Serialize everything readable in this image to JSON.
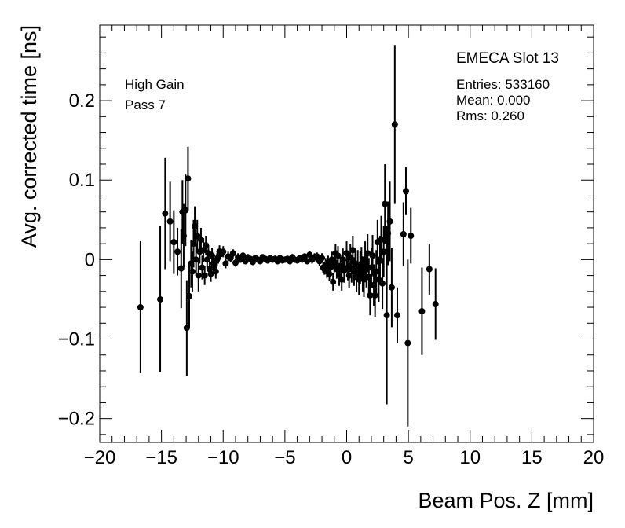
{
  "chart_data": {
    "type": "scatter",
    "xlabel": "Beam Pos. Z [mm]",
    "ylabel": "Avg. corrected time [ns]",
    "xlim": [
      -20,
      20
    ],
    "ylim": [
      -0.23,
      0.295
    ],
    "x_ticks": [
      -20,
      -15,
      -10,
      -5,
      0,
      5,
      10,
      15,
      20
    ],
    "x_tick_labels": [
      "−20",
      "−15",
      "−10",
      "−5",
      "0",
      "5",
      "10",
      "15",
      "20"
    ],
    "y_ticks": [
      -0.2,
      -0.1,
      0,
      0.1,
      0.2
    ],
    "y_tick_labels": [
      "−0.2",
      "−0.1",
      "0",
      "0.1",
      "0.2"
    ],
    "grid": false,
    "error_bars": true,
    "annotations": {
      "gain": "High Gain",
      "pass": "Pass 7",
      "slot": "EMECA Slot 13",
      "entries": "Entries: 533160",
      "mean": "Mean: 0.000",
      "rms": "Rms: 0.260"
    },
    "series": [
      {
        "points": [
          {
            "x": -16.7,
            "y": -0.06,
            "err": 0.083
          },
          {
            "x": -15.1,
            "y": -0.05,
            "err": 0.092
          },
          {
            "x": -14.7,
            "y": 0.058,
            "err": 0.07
          },
          {
            "x": -14.3,
            "y": 0.048,
            "err": 0.05
          },
          {
            "x": -14.0,
            "y": 0.022,
            "err": 0.04
          },
          {
            "x": -13.7,
            "y": 0.01,
            "err": 0.03
          },
          {
            "x": -13.4,
            "y": -0.011,
            "err": 0.05
          },
          {
            "x": -13.3,
            "y": 0.06,
            "err": 0.04
          },
          {
            "x": -13.2,
            "y": 0.03,
            "err": 0.04
          },
          {
            "x": -13.05,
            "y": 0.062,
            "err": 0.045
          },
          {
            "x": -12.95,
            "y": -0.086,
            "err": 0.06
          },
          {
            "x": -12.85,
            "y": 0.102,
            "err": 0.04
          },
          {
            "x": -12.75,
            "y": -0.046,
            "err": 0.04
          },
          {
            "x": -12.6,
            "y": -0.005,
            "err": 0.03
          },
          {
            "x": -12.5,
            "y": -0.015,
            "err": 0.025
          },
          {
            "x": -12.4,
            "y": 0.02,
            "err": 0.03
          },
          {
            "x": -12.3,
            "y": 0.042,
            "err": 0.025
          },
          {
            "x": -12.2,
            "y": 0.0,
            "err": 0.02
          },
          {
            "x": -12.1,
            "y": 0.03,
            "err": 0.02
          },
          {
            "x": -12.0,
            "y": -0.02,
            "err": 0.02
          },
          {
            "x": -11.9,
            "y": 0.01,
            "err": 0.015
          },
          {
            "x": -11.8,
            "y": 0.025,
            "err": 0.015
          },
          {
            "x": -11.7,
            "y": -0.01,
            "err": 0.015
          },
          {
            "x": -11.6,
            "y": 0.012,
            "err": 0.015
          },
          {
            "x": -11.5,
            "y": -0.02,
            "err": 0.012
          },
          {
            "x": -11.4,
            "y": 0.018,
            "err": 0.012
          },
          {
            "x": -11.3,
            "y": 0.0,
            "err": 0.012
          },
          {
            "x": -11.2,
            "y": 0.008,
            "err": 0.01
          },
          {
            "x": -11.1,
            "y": -0.012,
            "err": 0.01
          },
          {
            "x": -11.0,
            "y": -0.018,
            "err": 0.01
          },
          {
            "x": -10.9,
            "y": 0.005,
            "err": 0.01
          },
          {
            "x": -10.8,
            "y": -0.005,
            "err": 0.01
          },
          {
            "x": -10.7,
            "y": -0.008,
            "err": 0.009
          },
          {
            "x": -10.6,
            "y": -0.015,
            "err": 0.009
          },
          {
            "x": -10.5,
            "y": 0.0,
            "err": 0.008
          },
          {
            "x": -10.4,
            "y": 0.003,
            "err": 0.008
          },
          {
            "x": -10.3,
            "y": 0.01,
            "err": 0.008
          },
          {
            "x": -10.2,
            "y": 0.007,
            "err": 0.007
          },
          {
            "x": -10.0,
            "y": 0.01,
            "err": 0.007
          },
          {
            "x": -9.8,
            "y": -0.005,
            "err": 0.006
          },
          {
            "x": -9.6,
            "y": 0.004,
            "err": 0.006
          },
          {
            "x": -9.4,
            "y": 0.002,
            "err": 0.005
          },
          {
            "x": -9.2,
            "y": 0.008,
            "err": 0.005
          },
          {
            "x": -9.0,
            "y": -0.004,
            "err": 0.005
          },
          {
            "x": -8.8,
            "y": 0.003,
            "err": 0.005
          },
          {
            "x": -8.6,
            "y": 0.0,
            "err": 0.004
          },
          {
            "x": -8.4,
            "y": 0.005,
            "err": 0.004
          },
          {
            "x": -8.2,
            "y": -0.002,
            "err": 0.004
          },
          {
            "x": -8.0,
            "y": 0.003,
            "err": 0.004
          },
          {
            "x": -7.8,
            "y": 0.001,
            "err": 0.004
          },
          {
            "x": -7.6,
            "y": -0.003,
            "err": 0.004
          },
          {
            "x": -7.4,
            "y": 0.002,
            "err": 0.004
          },
          {
            "x": -7.2,
            "y": 0.0,
            "err": 0.004
          },
          {
            "x": -7.0,
            "y": -0.002,
            "err": 0.004
          },
          {
            "x": -6.8,
            "y": 0.003,
            "err": 0.004
          },
          {
            "x": -6.6,
            "y": 0.001,
            "err": 0.004
          },
          {
            "x": -6.4,
            "y": -0.001,
            "err": 0.004
          },
          {
            "x": -6.2,
            "y": 0.002,
            "err": 0.004
          },
          {
            "x": -6.0,
            "y": 0.0,
            "err": 0.004
          },
          {
            "x": -5.8,
            "y": 0.001,
            "err": 0.004
          },
          {
            "x": -5.6,
            "y": -0.002,
            "err": 0.004
          },
          {
            "x": -5.4,
            "y": 0.002,
            "err": 0.004
          },
          {
            "x": -5.2,
            "y": -0.001,
            "err": 0.004
          },
          {
            "x": -5.0,
            "y": 0.0,
            "err": 0.004
          },
          {
            "x": -4.8,
            "y": 0.001,
            "err": 0.004
          },
          {
            "x": -4.6,
            "y": -0.002,
            "err": 0.004
          },
          {
            "x": -4.4,
            "y": 0.003,
            "err": 0.004
          },
          {
            "x": -4.2,
            "y": 0.0,
            "err": 0.004
          },
          {
            "x": -4.0,
            "y": -0.001,
            "err": 0.004
          },
          {
            "x": -3.8,
            "y": 0.002,
            "err": 0.004
          },
          {
            "x": -3.6,
            "y": 0.0,
            "err": 0.004
          },
          {
            "x": -3.4,
            "y": 0.004,
            "err": 0.004
          },
          {
            "x": -3.2,
            "y": -0.002,
            "err": 0.004
          },
          {
            "x": -3.0,
            "y": 0.006,
            "err": 0.005
          },
          {
            "x": -2.8,
            "y": 0.0,
            "err": 0.005
          },
          {
            "x": -2.6,
            "y": 0.003,
            "err": 0.005
          },
          {
            "x": -2.4,
            "y": 0.004,
            "err": 0.005
          },
          {
            "x": -2.2,
            "y": -0.002,
            "err": 0.006
          },
          {
            "x": -2.0,
            "y": 0.002,
            "err": 0.006
          },
          {
            "x": -1.9,
            "y": -0.01,
            "err": 0.007
          },
          {
            "x": -1.8,
            "y": -0.012,
            "err": 0.007
          },
          {
            "x": -1.7,
            "y": -0.006,
            "err": 0.008
          },
          {
            "x": -1.6,
            "y": -0.015,
            "err": 0.008
          },
          {
            "x": -1.5,
            "y": -0.004,
            "err": 0.009
          },
          {
            "x": -1.4,
            "y": -0.018,
            "err": 0.009
          },
          {
            "x": -1.3,
            "y": -0.01,
            "err": 0.01
          },
          {
            "x": -1.2,
            "y": 0.0,
            "err": 0.01
          },
          {
            "x": -1.1,
            "y": -0.028,
            "err": 0.011
          },
          {
            "x": -1.0,
            "y": -0.005,
            "err": 0.011
          },
          {
            "x": -0.9,
            "y": 0.008,
            "err": 0.012
          },
          {
            "x": -0.8,
            "y": -0.012,
            "err": 0.012
          },
          {
            "x": -0.7,
            "y": 0.005,
            "err": 0.012
          },
          {
            "x": -0.6,
            "y": -0.02,
            "err": 0.013
          },
          {
            "x": -0.5,
            "y": -0.008,
            "err": 0.013
          },
          {
            "x": -0.4,
            "y": -0.025,
            "err": 0.014
          },
          {
            "x": -0.3,
            "y": 0.0,
            "err": 0.014
          },
          {
            "x": -0.2,
            "y": -0.014,
            "err": 0.015
          },
          {
            "x": 0.0,
            "y": 0.008,
            "err": 0.015
          },
          {
            "x": 0.1,
            "y": -0.01,
            "err": 0.016
          },
          {
            "x": 0.2,
            "y": -0.02,
            "err": 0.016
          },
          {
            "x": 0.3,
            "y": 0.003,
            "err": 0.017
          },
          {
            "x": 0.4,
            "y": -0.012,
            "err": 0.017
          },
          {
            "x": 0.5,
            "y": 0.012,
            "err": 0.018
          },
          {
            "x": 0.6,
            "y": -0.015,
            "err": 0.018
          },
          {
            "x": 0.7,
            "y": -0.005,
            "err": 0.019
          },
          {
            "x": 0.8,
            "y": -0.022,
            "err": 0.019
          },
          {
            "x": 0.9,
            "y": -0.008,
            "err": 0.02
          },
          {
            "x": 1.0,
            "y": -0.025,
            "err": 0.02
          },
          {
            "x": 1.1,
            "y": -0.01,
            "err": 0.021
          },
          {
            "x": 1.2,
            "y": -0.005,
            "err": 0.021
          },
          {
            "x": 1.3,
            "y": -0.018,
            "err": 0.022
          },
          {
            "x": 1.4,
            "y": -0.025,
            "err": 0.022
          },
          {
            "x": 1.5,
            "y": 0.0,
            "err": 0.023
          },
          {
            "x": 1.6,
            "y": -0.012,
            "err": 0.023
          },
          {
            "x": 1.7,
            "y": 0.008,
            "err": 0.024
          },
          {
            "x": 1.8,
            "y": -0.022,
            "err": 0.024
          },
          {
            "x": 1.9,
            "y": -0.045,
            "err": 0.025
          },
          {
            "x": 2.0,
            "y": -0.01,
            "err": 0.025
          },
          {
            "x": 2.1,
            "y": 0.005,
            "err": 0.026
          },
          {
            "x": 2.2,
            "y": -0.032,
            "err": 0.026
          },
          {
            "x": 2.3,
            "y": -0.045,
            "err": 0.027
          },
          {
            "x": 2.4,
            "y": -0.015,
            "err": 0.027
          },
          {
            "x": 2.5,
            "y": 0.022,
            "err": 0.028
          },
          {
            "x": 2.6,
            "y": -0.025,
            "err": 0.028
          },
          {
            "x": 2.7,
            "y": 0.0,
            "err": 0.03
          },
          {
            "x": 2.8,
            "y": 0.025,
            "err": 0.03
          },
          {
            "x": 2.9,
            "y": -0.03,
            "err": 0.032
          },
          {
            "x": 3.0,
            "y": 0.01,
            "err": 0.032
          },
          {
            "x": 3.1,
            "y": 0.07,
            "err": 0.05
          },
          {
            "x": 3.25,
            "y": -0.07,
            "err": 0.112
          },
          {
            "x": 3.35,
            "y": 0.033,
            "err": 0.04
          },
          {
            "x": 3.5,
            "y": 0.048,
            "err": 0.05
          },
          {
            "x": 3.65,
            "y": -0.035,
            "err": 0.05
          },
          {
            "x": 3.9,
            "y": 0.17,
            "err": 0.1
          },
          {
            "x": 4.1,
            "y": -0.07,
            "err": 0.035
          },
          {
            "x": 4.6,
            "y": 0.032,
            "err": 0.04
          },
          {
            "x": 4.8,
            "y": 0.086,
            "err": 0.03
          },
          {
            "x": 4.95,
            "y": -0.105,
            "err": 0.105
          },
          {
            "x": 5.2,
            "y": 0.03,
            "err": 0.035
          },
          {
            "x": 6.1,
            "y": -0.065,
            "err": 0.055
          },
          {
            "x": 6.7,
            "y": -0.012,
            "err": 0.032
          },
          {
            "x": 7.2,
            "y": -0.056,
            "err": 0.045
          }
        ]
      }
    ]
  }
}
